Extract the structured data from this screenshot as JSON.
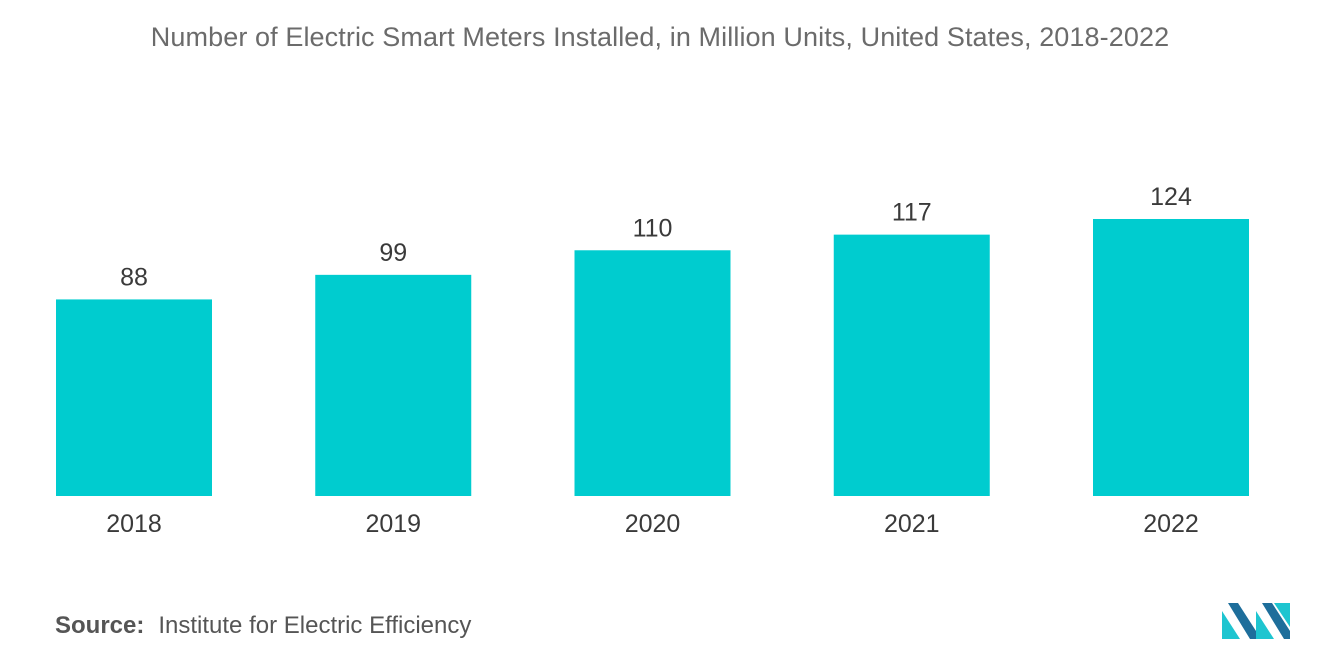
{
  "title": "Number of Electric Smart Meters Installed, in Million Units, United States, 2018-2022",
  "source": {
    "label": "Source:",
    "text": "Institute for Electric Efficiency"
  },
  "colors": {
    "bar": "#00cccf",
    "logo_dark": "#1e6e9b",
    "logo_light": "#1ec5d0"
  },
  "chart_data": {
    "type": "bar",
    "categories": [
      "2018",
      "2019",
      "2020",
      "2021",
      "2022"
    ],
    "values": [
      88,
      99,
      110,
      117,
      124
    ],
    "value_labels": [
      "88",
      "99",
      "110",
      "117",
      "124"
    ],
    "title": "Number of Electric Smart Meters Installed, in Million Units, United States, 2018-2022",
    "xlabel": "",
    "ylabel": "",
    "ylim": [
      0,
      124
    ],
    "grid": false,
    "legend": "none"
  }
}
